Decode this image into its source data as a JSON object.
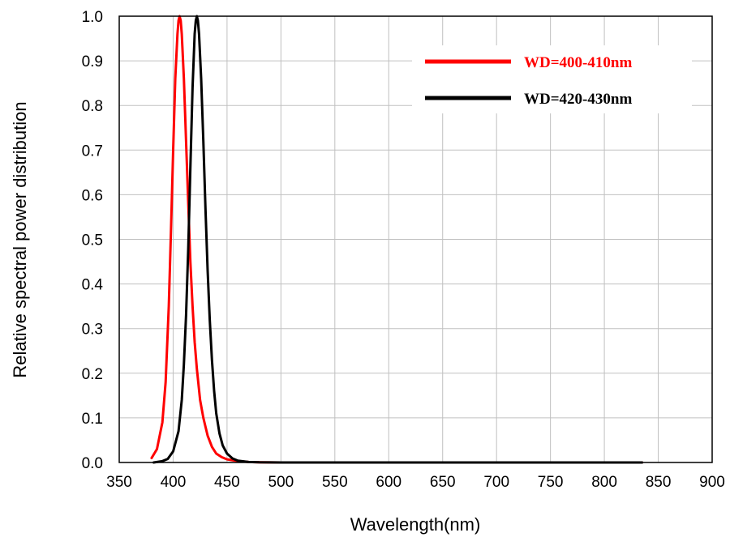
{
  "chart_data": {
    "type": "line",
    "xlabel": "Wavelength(nm)",
    "ylabel": "Relative spectral power distribution",
    "xlim": [
      350,
      900
    ],
    "ylim": [
      0,
      1.0
    ],
    "x_ticks": [
      "350",
      "400",
      "450",
      "500",
      "550",
      "600",
      "650",
      "700",
      "750",
      "800",
      "850",
      "900"
    ],
    "y_ticks": [
      "0.0",
      "0.1",
      "0.2",
      "0.3",
      "0.4",
      "0.5",
      "0.6",
      "0.7",
      "0.8",
      "0.9",
      "1.0"
    ],
    "grid": true,
    "legend_position": "top-right",
    "series": [
      {
        "name": "WD=400-410nm",
        "color": "#ff0000",
        "x": [
          380,
          385,
          390,
          393,
          396,
          398,
          400,
          402,
          404,
          405,
          406,
          407,
          408,
          410,
          412,
          414,
          416,
          418,
          420,
          422,
          425,
          428,
          432,
          436,
          440,
          445,
          450,
          460,
          470,
          480,
          500,
          550,
          600,
          700,
          835
        ],
        "y": [
          0.01,
          0.03,
          0.09,
          0.18,
          0.35,
          0.52,
          0.7,
          0.86,
          0.96,
          0.99,
          1.0,
          0.99,
          0.96,
          0.86,
          0.72,
          0.58,
          0.45,
          0.35,
          0.27,
          0.21,
          0.14,
          0.1,
          0.06,
          0.035,
          0.02,
          0.012,
          0.007,
          0.003,
          0.001,
          0.0005,
          0,
          0,
          0,
          0,
          0
        ]
      },
      {
        "name": "WD=420-430nm",
        "color": "#000000",
        "x": [
          382,
          390,
          395,
          400,
          405,
          408,
          410,
          412,
          414,
          416,
          418,
          420,
          421,
          422,
          423,
          424,
          426,
          428,
          430,
          432,
          434,
          436,
          438,
          440,
          443,
          446,
          450,
          455,
          460,
          470,
          480,
          500,
          550,
          600,
          700,
          835
        ],
        "y": [
          0,
          0.003,
          0.008,
          0.025,
          0.07,
          0.14,
          0.22,
          0.33,
          0.48,
          0.66,
          0.84,
          0.96,
          0.99,
          1.0,
          0.99,
          0.96,
          0.86,
          0.72,
          0.57,
          0.43,
          0.32,
          0.23,
          0.16,
          0.11,
          0.065,
          0.038,
          0.02,
          0.009,
          0.004,
          0.001,
          0.0003,
          0,
          0,
          0,
          0,
          0
        ]
      }
    ]
  }
}
